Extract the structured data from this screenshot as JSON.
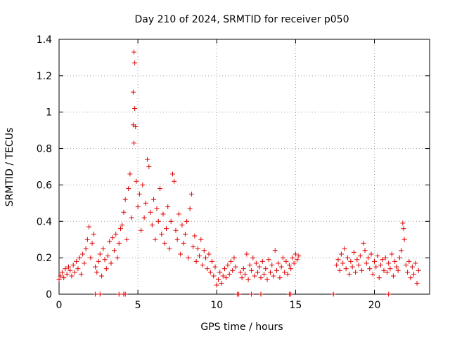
{
  "chart_data": {
    "type": "scatter",
    "title": "Day 210 of 2024, SRMTID for receiver p050",
    "xlabel": "GPS time / hours",
    "ylabel": "SRMTID / TECUs",
    "xlim": [
      0,
      23.5
    ],
    "ylim": [
      0,
      1.4
    ],
    "xticks": [
      0,
      5,
      10,
      15,
      20
    ],
    "xtick_labels": [
      "0",
      "5",
      "10",
      "15",
      "20"
    ],
    "yticks": [
      0,
      0.2,
      0.4,
      0.6,
      0.8,
      1.0,
      1.2,
      1.4
    ],
    "ytick_labels": [
      "0",
      "0.2",
      "0.4",
      "0.6",
      "0.8",
      "1",
      "1.2",
      "1.4"
    ],
    "grid": true,
    "marker": "+",
    "marker_color": "#e00000",
    "series": [
      {
        "name": "SRMTID",
        "points": [
          [
            0.0,
            0.08
          ],
          [
            0.1,
            0.1
          ],
          [
            0.2,
            0.12
          ],
          [
            0.3,
            0.09
          ],
          [
            0.4,
            0.14
          ],
          [
            0.5,
            0.11
          ],
          [
            0.6,
            0.15
          ],
          [
            0.7,
            0.13
          ],
          [
            0.8,
            0.1
          ],
          [
            0.9,
            0.16
          ],
          [
            1.0,
            0.12
          ],
          [
            1.1,
            0.18
          ],
          [
            1.2,
            0.14
          ],
          [
            1.3,
            0.2
          ],
          [
            1.4,
            0.11
          ],
          [
            1.5,
            0.22
          ],
          [
            1.6,
            0.17
          ],
          [
            1.7,
            0.25
          ],
          [
            1.8,
            0.3
          ],
          [
            1.9,
            0.37
          ],
          [
            2.0,
            0.2
          ],
          [
            2.1,
            0.28
          ],
          [
            2.2,
            0.33
          ],
          [
            2.3,
            0.15
          ],
          [
            2.4,
            0.12
          ],
          [
            2.5,
            0.18
          ],
          [
            2.6,
            0.22
          ],
          [
            2.7,
            0.1
          ],
          [
            2.8,
            0.25
          ],
          [
            2.9,
            0.19
          ],
          [
            3.0,
            0.14
          ],
          [
            3.1,
            0.21
          ],
          [
            3.2,
            0.29
          ],
          [
            3.3,
            0.17
          ],
          [
            3.4,
            0.31
          ],
          [
            3.5,
            0.24
          ],
          [
            3.6,
            0.33
          ],
          [
            3.7,
            0.2
          ],
          [
            3.8,
            0.28
          ],
          [
            3.9,
            0.36
          ],
          [
            4.0,
            0.38
          ],
          [
            4.1,
            0.45
          ],
          [
            4.2,
            0.52
          ],
          [
            4.3,
            0.3
          ],
          [
            4.4,
            0.58
          ],
          [
            4.5,
            0.66
          ],
          [
            4.6,
            0.42
          ],
          [
            4.7,
            0.93
          ],
          [
            4.75,
            1.33
          ],
          [
            4.8,
            1.27
          ],
          [
            4.7,
            1.11
          ],
          [
            4.8,
            1.02
          ],
          [
            4.85,
            0.92
          ],
          [
            4.75,
            0.83
          ],
          [
            4.9,
            0.62
          ],
          [
            5.0,
            0.48
          ],
          [
            5.1,
            0.55
          ],
          [
            5.2,
            0.35
          ],
          [
            5.3,
            0.6
          ],
          [
            5.4,
            0.42
          ],
          [
            5.5,
            0.5
          ],
          [
            5.6,
            0.74
          ],
          [
            5.7,
            0.7
          ],
          [
            5.8,
            0.45
          ],
          [
            5.9,
            0.38
          ],
          [
            6.0,
            0.52
          ],
          [
            6.1,
            0.3
          ],
          [
            6.2,
            0.47
          ],
          [
            6.3,
            0.4
          ],
          [
            6.4,
            0.58
          ],
          [
            6.5,
            0.33
          ],
          [
            6.6,
            0.44
          ],
          [
            6.7,
            0.28
          ],
          [
            6.8,
            0.36
          ],
          [
            6.9,
            0.48
          ],
          [
            7.0,
            0.25
          ],
          [
            7.1,
            0.4
          ],
          [
            7.2,
            0.66
          ],
          [
            7.3,
            0.62
          ],
          [
            7.4,
            0.35
          ],
          [
            7.5,
            0.3
          ],
          [
            7.6,
            0.44
          ],
          [
            7.7,
            0.22
          ],
          [
            7.8,
            0.38
          ],
          [
            7.9,
            0.28
          ],
          [
            8.0,
            0.33
          ],
          [
            8.1,
            0.4
          ],
          [
            8.2,
            0.2
          ],
          [
            8.3,
            0.47
          ],
          [
            8.4,
            0.55
          ],
          [
            8.5,
            0.26
          ],
          [
            8.6,
            0.32
          ],
          [
            8.7,
            0.18
          ],
          [
            8.8,
            0.25
          ],
          [
            8.9,
            0.21
          ],
          [
            9.0,
            0.3
          ],
          [
            9.1,
            0.16
          ],
          [
            9.2,
            0.24
          ],
          [
            9.3,
            0.2
          ],
          [
            9.4,
            0.14
          ],
          [
            9.5,
            0.22
          ],
          [
            9.6,
            0.12
          ],
          [
            9.7,
            0.18
          ],
          [
            9.8,
            0.1
          ],
          [
            9.9,
            0.15
          ],
          [
            10.0,
            0.05
          ],
          [
            10.1,
            0.08
          ],
          [
            10.2,
            0.12
          ],
          [
            10.3,
            0.06
          ],
          [
            10.4,
            0.1
          ],
          [
            10.5,
            0.14
          ],
          [
            10.6,
            0.09
          ],
          [
            10.7,
            0.16
          ],
          [
            10.8,
            0.11
          ],
          [
            10.9,
            0.18
          ],
          [
            11.0,
            0.13
          ],
          [
            11.1,
            0.2
          ],
          [
            11.2,
            0.15
          ],
          [
            11.5,
            0.12
          ],
          [
            11.6,
            0.09
          ],
          [
            11.7,
            0.14
          ],
          [
            11.8,
            0.11
          ],
          [
            11.9,
            0.22
          ],
          [
            12.0,
            0.08
          ],
          [
            12.1,
            0.16
          ],
          [
            12.2,
            0.13
          ],
          [
            12.3,
            0.2
          ],
          [
            12.4,
            0.1
          ],
          [
            12.5,
            0.17
          ],
          [
            12.6,
            0.12
          ],
          [
            12.7,
            0.15
          ],
          [
            12.8,
            0.09
          ],
          [
            12.9,
            0.18
          ],
          [
            13.0,
            0.11
          ],
          [
            13.1,
            0.14
          ],
          [
            13.2,
            0.08
          ],
          [
            13.3,
            0.19
          ],
          [
            13.4,
            0.12
          ],
          [
            13.5,
            0.16
          ],
          [
            13.6,
            0.1
          ],
          [
            13.7,
            0.24
          ],
          [
            13.8,
            0.13
          ],
          [
            13.9,
            0.17
          ],
          [
            14.0,
            0.09
          ],
          [
            14.1,
            0.15
          ],
          [
            14.2,
            0.2
          ],
          [
            14.3,
            0.12
          ],
          [
            14.4,
            0.18
          ],
          [
            14.5,
            0.11
          ],
          [
            14.6,
            0.16
          ],
          [
            14.7,
            0.14
          ],
          [
            14.8,
            0.2
          ],
          [
            14.9,
            0.17
          ],
          [
            15.0,
            0.22
          ],
          [
            15.1,
            0.19
          ],
          [
            15.2,
            0.21
          ],
          [
            17.6,
            0.16
          ],
          [
            17.7,
            0.19
          ],
          [
            17.8,
            0.13
          ],
          [
            17.9,
            0.22
          ],
          [
            18.0,
            0.17
          ],
          [
            18.1,
            0.25
          ],
          [
            18.2,
            0.14
          ],
          [
            18.3,
            0.2
          ],
          [
            18.4,
            0.11
          ],
          [
            18.5,
            0.18
          ],
          [
            18.6,
            0.15
          ],
          [
            18.7,
            0.23
          ],
          [
            18.8,
            0.12
          ],
          [
            18.9,
            0.19
          ],
          [
            19.0,
            0.16
          ],
          [
            19.1,
            0.21
          ],
          [
            19.2,
            0.13
          ],
          [
            19.3,
            0.28
          ],
          [
            19.4,
            0.24
          ],
          [
            19.5,
            0.17
          ],
          [
            19.6,
            0.2
          ],
          [
            19.7,
            0.14
          ],
          [
            19.8,
            0.22
          ],
          [
            19.9,
            0.11
          ],
          [
            20.0,
            0.18
          ],
          [
            20.1,
            0.15
          ],
          [
            20.2,
            0.21
          ],
          [
            20.3,
            0.09
          ],
          [
            20.4,
            0.16
          ],
          [
            20.5,
            0.19
          ],
          [
            20.6,
            0.13
          ],
          [
            20.7,
            0.2
          ],
          [
            20.8,
            0.12
          ],
          [
            20.9,
            0.17
          ],
          [
            21.0,
            0.14
          ],
          [
            21.1,
            0.22
          ],
          [
            21.2,
            0.1
          ],
          [
            21.3,
            0.18
          ],
          [
            21.4,
            0.15
          ],
          [
            21.5,
            0.13
          ],
          [
            21.6,
            0.2
          ],
          [
            21.7,
            0.24
          ],
          [
            21.8,
            0.39
          ],
          [
            21.85,
            0.36
          ],
          [
            21.9,
            0.3
          ],
          [
            22.0,
            0.16
          ],
          [
            22.1,
            0.12
          ],
          [
            22.2,
            0.18
          ],
          [
            22.3,
            0.09
          ],
          [
            22.4,
            0.15
          ],
          [
            22.5,
            0.11
          ],
          [
            22.6,
            0.17
          ],
          [
            22.7,
            0.06
          ],
          [
            22.8,
            0.13
          ]
        ]
      }
    ],
    "zero_markers_x": [
      2.3,
      2.6,
      3.8,
      4.1,
      4.2,
      11.3,
      11.4,
      12.2,
      12.8,
      14.6,
      14.7,
      17.4,
      20.9
    ]
  }
}
